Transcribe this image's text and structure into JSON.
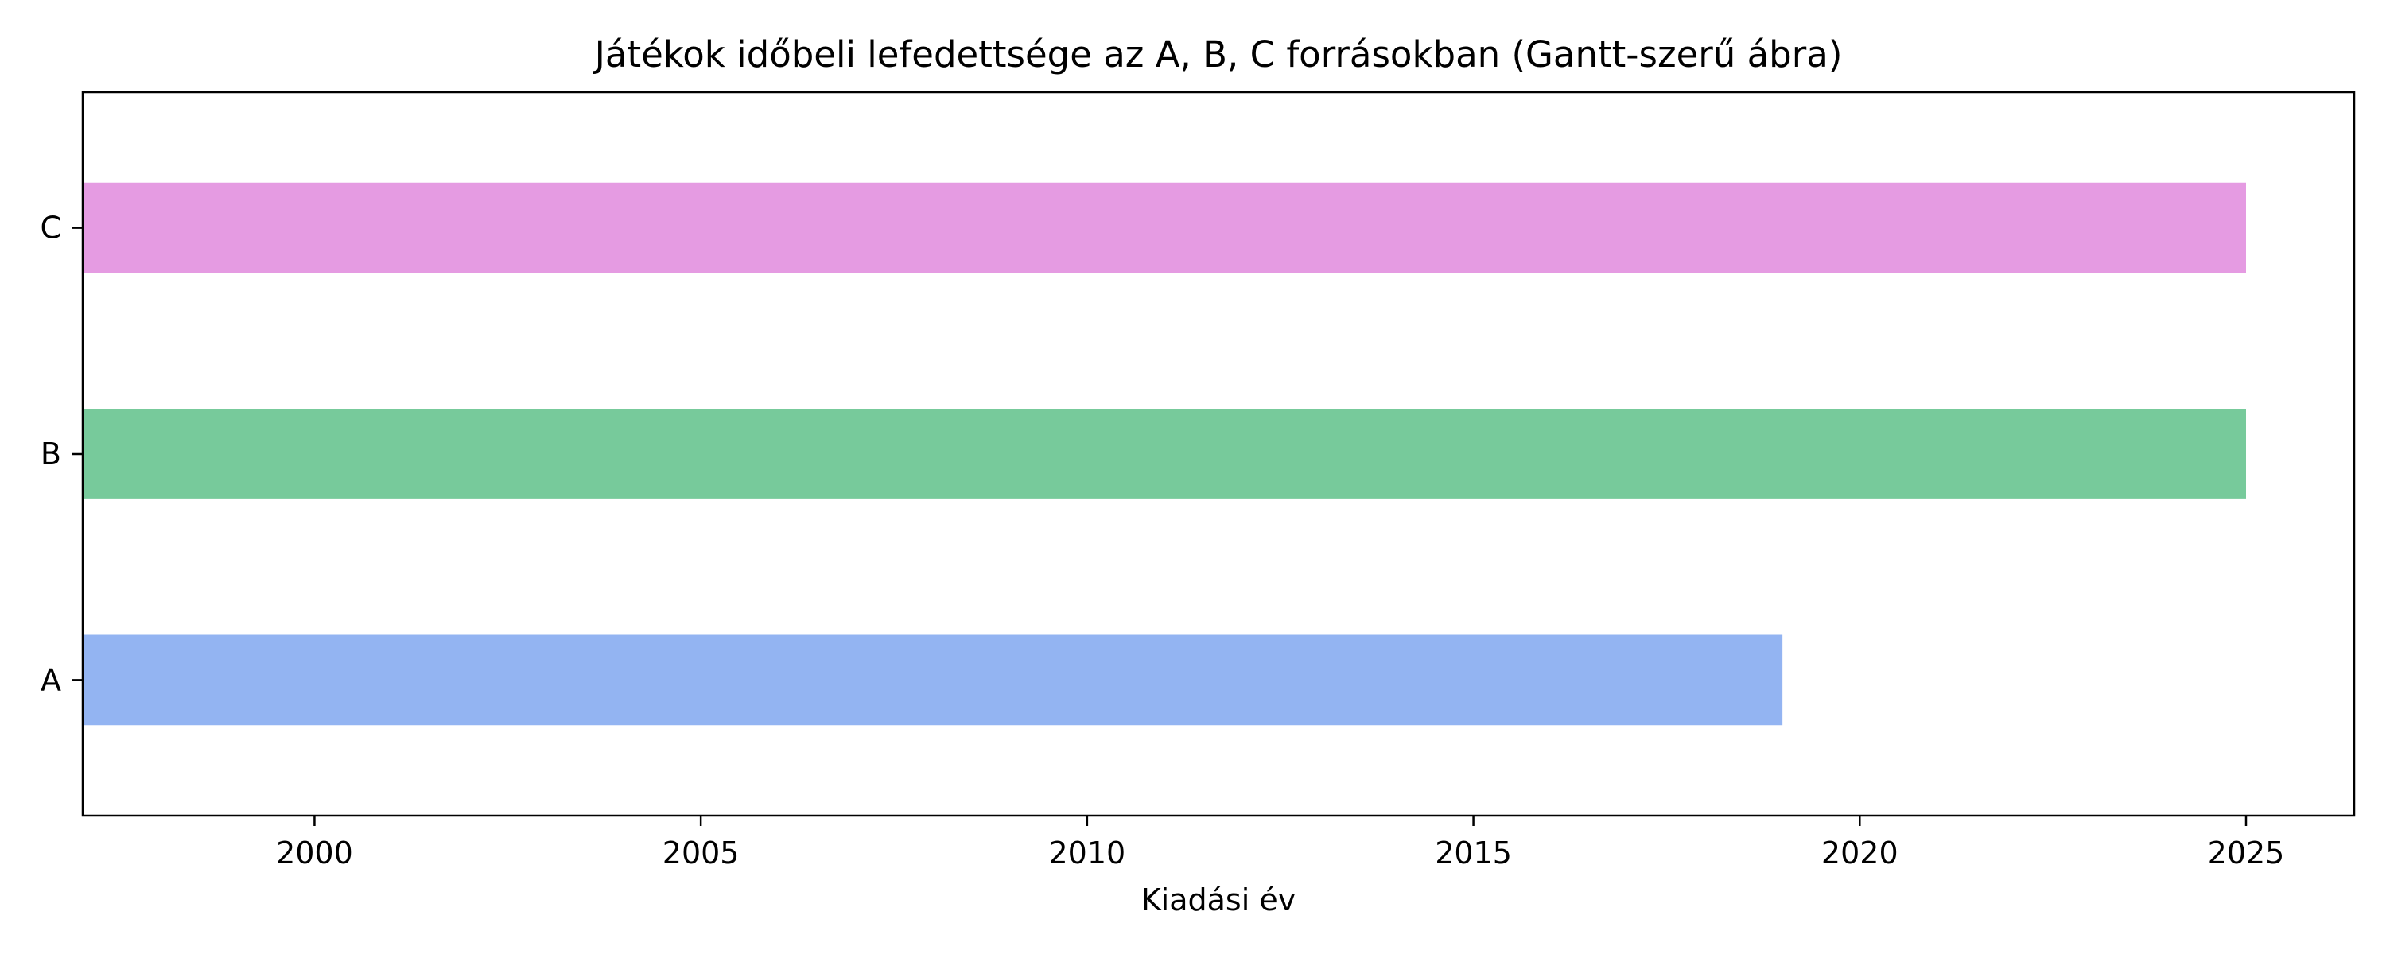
{
  "chart_data": {
    "type": "bar",
    "orientation": "horizontal",
    "title": "Játékok időbeli lefedettsége az A, B, C forrásokban (Gantt-szerű ábra)",
    "xlabel": "Kiadási év",
    "ylabel": "",
    "categories": [
      "A",
      "B",
      "C"
    ],
    "bars": [
      {
        "category": "A",
        "start": 1997,
        "end": 2019,
        "color": "#93b4f2"
      },
      {
        "category": "B",
        "start": 1997,
        "end": 2025,
        "color": "#77ca9b"
      },
      {
        "category": "C",
        "start": 1997,
        "end": 2025,
        "color": "#e59be2"
      }
    ],
    "xlim": [
      1997,
      2026.4
    ],
    "xticks": [
      2000,
      2005,
      2010,
      2015,
      2020,
      2025
    ],
    "grid": false,
    "legend": "none"
  }
}
